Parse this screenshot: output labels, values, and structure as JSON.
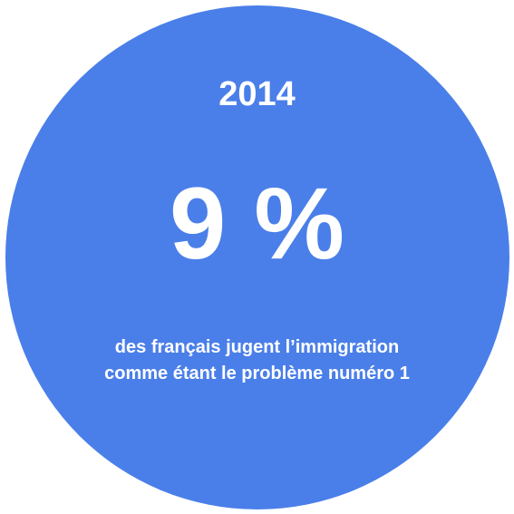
{
  "colors": {
    "circle": "#4a7fe9",
    "text": "#ffffff",
    "background": "#ffffff"
  },
  "stat": {
    "year": "2014",
    "value": "9 %",
    "caption_line1": "des français jugent l’immigration",
    "caption_line2": "comme étant le problème numéro 1"
  }
}
